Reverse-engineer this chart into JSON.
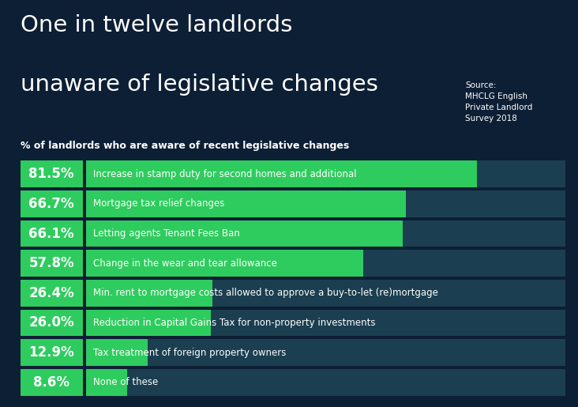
{
  "title_line1": "One in twelve landlords",
  "title_line2": "unaware of legislative changes",
  "subtitle": "% of landlords who are aware of recent legislative changes",
  "source": "Source:\nMHCLG English\nPrivate Landlord\nSurvey 2018",
  "background_color": "#0d1f35",
  "bar_bg_color": "#1b3f50",
  "green_color": "#2ecc5e",
  "white": "#ffffff",
  "categories": [
    "Increase in stamp duty for second homes and additional",
    "Mortgage tax relief changes",
    "Letting agents Tenant Fees Ban",
    "Change in the wear and tear allowance",
    "Min. rent to mortgage costs allowed to approve a buy-to-let (re)mortgage",
    "Reduction in Capital Gains Tax for non-property investments",
    "Tax treatment of foreign property owners",
    "None of these"
  ],
  "values": [
    81.5,
    66.7,
    66.1,
    57.8,
    26.4,
    26.0,
    12.9,
    8.6
  ],
  "max_value": 100,
  "title_fontsize": 21,
  "subtitle_fontsize": 9,
  "pct_fontsize": 12,
  "label_fontsize": 8.5,
  "source_fontsize": 7.5
}
